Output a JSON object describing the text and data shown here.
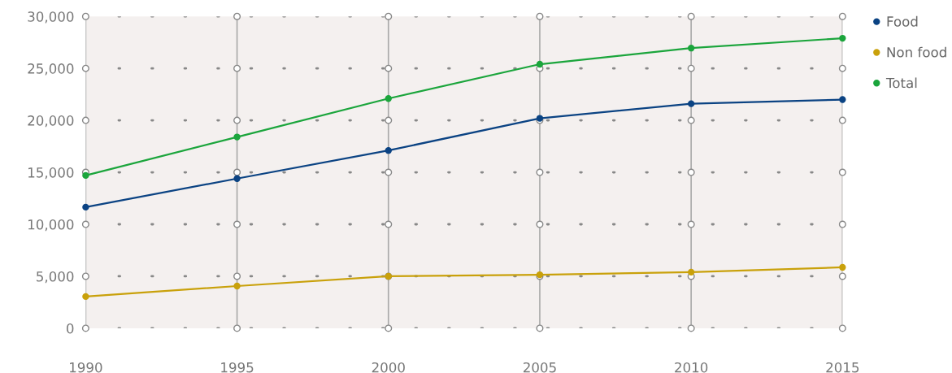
{
  "chart_data": {
    "type": "line",
    "x": [
      1990,
      1995,
      2000,
      2005,
      2010,
      2015
    ],
    "xlim": [
      1990,
      2015
    ],
    "xticks": [
      1990,
      1995,
      2000,
      2005,
      2010,
      2015
    ],
    "ylim": [
      0,
      30000
    ],
    "yticks": [
      {
        "value": 0,
        "label": "0"
      },
      {
        "value": 5000,
        "label": "5,000"
      },
      {
        "value": 10000,
        "label": "10,000"
      },
      {
        "value": 15000,
        "label": "15,000"
      },
      {
        "value": 20000,
        "label": "20,000"
      },
      {
        "value": 25000,
        "label": "25,000"
      },
      {
        "value": 30000,
        "label": "30,000"
      }
    ],
    "series": [
      {
        "name": "Food",
        "color": "#0b4383",
        "values": [
          11650,
          14400,
          17100,
          20200,
          21600,
          22000
        ]
      },
      {
        "name": "Non food",
        "color": "#c9a10b",
        "values": [
          3050,
          4060,
          5000,
          5150,
          5400,
          5860
        ]
      },
      {
        "name": "Total",
        "color": "#1ba53c",
        "values": [
          14700,
          18400,
          22100,
          25400,
          26950,
          27900
        ]
      }
    ],
    "marker": "circle",
    "line_style": "solid",
    "grid": true,
    "legend": "top right"
  }
}
